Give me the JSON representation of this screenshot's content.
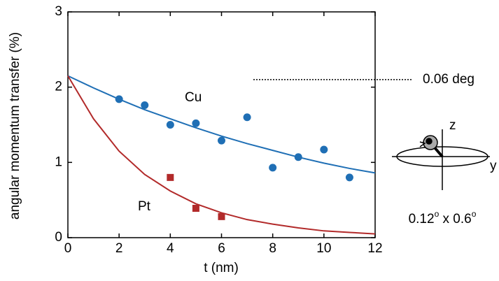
{
  "chart_data": {
    "type": "scatter",
    "xlabel": "t (nm)",
    "ylabel": "angular momentum transfer (%)",
    "xlim": [
      0,
      12
    ],
    "xticks": [
      0,
      2,
      4,
      6,
      8,
      10,
      12
    ],
    "ylim": [
      0,
      3
    ],
    "yticks": [
      0,
      1,
      2,
      3
    ],
    "fit_x": [
      0,
      1,
      2,
      3,
      4,
      5,
      6,
      7,
      8,
      9,
      10,
      11,
      12
    ],
    "series": [
      {
        "name": "Cu",
        "color": "#1f6fb5",
        "marker": "circle",
        "x": [
          2,
          3,
          4,
          5,
          6,
          7,
          8,
          9,
          10,
          11
        ],
        "values": [
          1.84,
          1.76,
          1.5,
          1.52,
          1.29,
          1.6,
          0.93,
          1.07,
          1.17,
          0.8
        ],
        "fit": [
          2.15,
          1.99,
          1.84,
          1.7,
          1.58,
          1.46,
          1.35,
          1.25,
          1.16,
          1.07,
          0.99,
          0.92,
          0.86
        ]
      },
      {
        "name": "Pt",
        "color": "#b22a2a",
        "marker": "square",
        "x": [
          4,
          5,
          6
        ],
        "values": [
          0.8,
          0.39,
          0.28
        ],
        "fit": [
          2.15,
          1.58,
          1.15,
          0.84,
          0.62,
          0.45,
          0.33,
          0.24,
          0.18,
          0.13,
          0.09,
          0.07,
          0.05
        ]
      }
    ],
    "reference": {
      "y": 2.1,
      "label": "0.06 deg"
    },
    "inset": {
      "axis_labels": [
        "z",
        "y"
      ],
      "caption": [
        "0.12",
        "o",
        " x 0.6",
        "o"
      ]
    }
  }
}
